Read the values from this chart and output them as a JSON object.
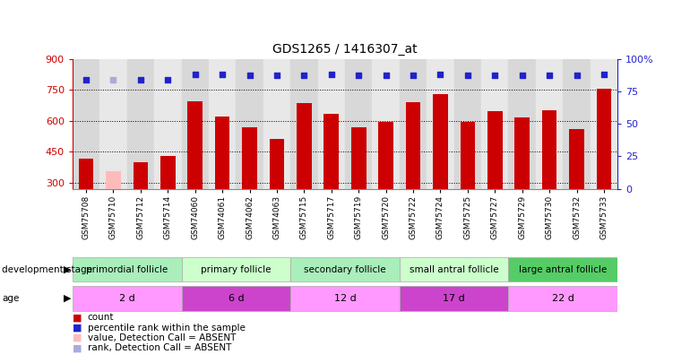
{
  "title": "GDS1265 / 1416307_at",
  "samples": [
    "GSM75708",
    "GSM75710",
    "GSM75712",
    "GSM75714",
    "GSM74060",
    "GSM74061",
    "GSM74062",
    "GSM74063",
    "GSM75715",
    "GSM75717",
    "GSM75719",
    "GSM75720",
    "GSM75722",
    "GSM75724",
    "GSM75725",
    "GSM75727",
    "GSM75729",
    "GSM75730",
    "GSM75732",
    "GSM75733"
  ],
  "bar_values": [
    415,
    355,
    400,
    430,
    695,
    620,
    570,
    510,
    685,
    635,
    570,
    595,
    690,
    730,
    595,
    645,
    615,
    650,
    560,
    755
  ],
  "bar_colors": [
    "#cc0000",
    "#ffbbbb",
    "#cc0000",
    "#cc0000",
    "#cc0000",
    "#cc0000",
    "#cc0000",
    "#cc0000",
    "#cc0000",
    "#cc0000",
    "#cc0000",
    "#cc0000",
    "#cc0000",
    "#cc0000",
    "#cc0000",
    "#cc0000",
    "#cc0000",
    "#cc0000",
    "#cc0000",
    "#cc0000"
  ],
  "rank_values": [
    84,
    84,
    84,
    84,
    88,
    88,
    87,
    87,
    87,
    88,
    87,
    87,
    87,
    88,
    87,
    87,
    87,
    87,
    87,
    88
  ],
  "rank_colors": [
    "#2222cc",
    "#aaaadd",
    "#2222cc",
    "#2222cc",
    "#2222cc",
    "#2222cc",
    "#2222cc",
    "#2222cc",
    "#2222cc",
    "#2222cc",
    "#2222cc",
    "#2222cc",
    "#2222cc",
    "#2222cc",
    "#2222cc",
    "#2222cc",
    "#2222cc",
    "#2222cc",
    "#2222cc",
    "#2222cc"
  ],
  "groups": [
    {
      "label": "primordial follicle",
      "start": 0,
      "end": 4,
      "color": "#aaeebb"
    },
    {
      "label": "primary follicle",
      "start": 4,
      "end": 8,
      "color": "#ccffcc"
    },
    {
      "label": "secondary follicle",
      "start": 8,
      "end": 12,
      "color": "#aaeebb"
    },
    {
      "label": "small antral follicle",
      "start": 12,
      "end": 16,
      "color": "#ccffcc"
    },
    {
      "label": "large antral follicle",
      "start": 16,
      "end": 20,
      "color": "#55cc66"
    }
  ],
  "ages": [
    {
      "label": "2 d",
      "start": 0,
      "end": 4,
      "color": "#ff99ff"
    },
    {
      "label": "6 d",
      "start": 4,
      "end": 8,
      "color": "#cc44cc"
    },
    {
      "label": "12 d",
      "start": 8,
      "end": 12,
      "color": "#ff99ff"
    },
    {
      "label": "17 d",
      "start": 12,
      "end": 16,
      "color": "#cc44cc"
    },
    {
      "label": "22 d",
      "start": 16,
      "end": 20,
      "color": "#ff99ff"
    }
  ],
  "ylim_left": [
    270,
    900
  ],
  "ylim_right": [
    0,
    100
  ],
  "yticks_left": [
    300,
    450,
    600,
    750,
    900
  ],
  "yticks_right": [
    0,
    25,
    50,
    75,
    100
  ],
  "col_bg_colors": [
    "#d8d8d8",
    "#e8e8e8"
  ],
  "background_color": "#ffffff",
  "legend_items": [
    {
      "label": "count",
      "color": "#cc0000"
    },
    {
      "label": "percentile rank within the sample",
      "color": "#2222cc"
    },
    {
      "label": "value, Detection Call = ABSENT",
      "color": "#ffbbbb"
    },
    {
      "label": "rank, Detection Call = ABSENT",
      "color": "#aaaadd"
    }
  ]
}
